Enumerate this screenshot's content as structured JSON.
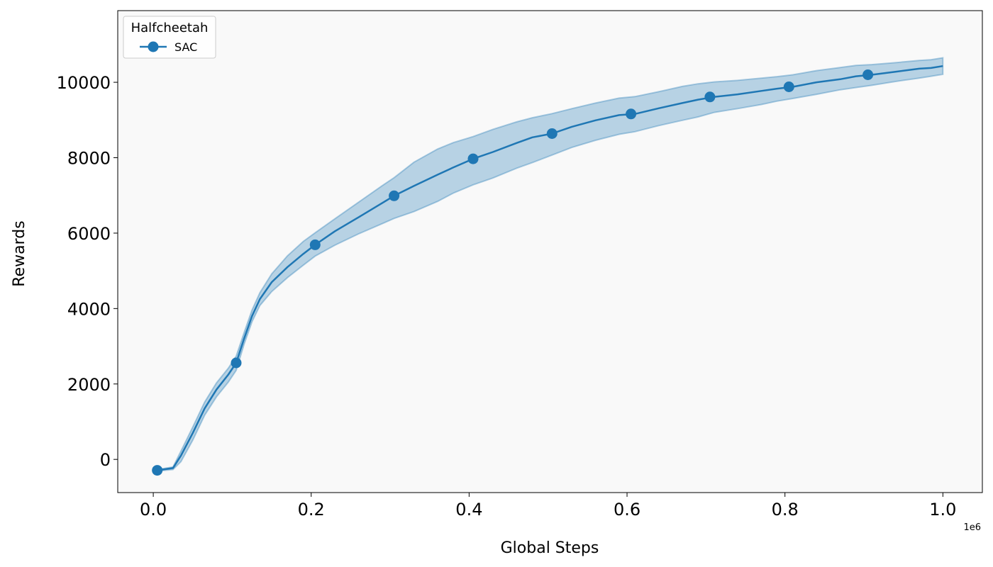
{
  "chart_data": {
    "type": "line",
    "xlabel": "Global Steps",
    "ylabel": "Rewards",
    "x_offset_label": "1e6",
    "xlim": [
      -0.045,
      1.05
    ],
    "ylim": [
      -880,
      11900
    ],
    "x_ticks": [
      0.0,
      0.2,
      0.4,
      0.6,
      0.8,
      1.0
    ],
    "x_tick_labels": [
      "0.0",
      "0.2",
      "0.4",
      "0.6",
      "0.8",
      "1.0"
    ],
    "y_ticks": [
      0,
      2000,
      4000,
      6000,
      8000,
      10000
    ],
    "y_tick_labels": [
      "0",
      "2000",
      "4000",
      "6000",
      "8000",
      "10000"
    ],
    "grid": false,
    "legend": {
      "title": "Halfcheetah",
      "placement": "top-left",
      "entries": [
        "SAC"
      ]
    },
    "colors": {
      "series": "#1f77b4",
      "band_fill": "#1f77b4",
      "plot_background": "#f9f9f9"
    },
    "series": [
      {
        "name": "SAC",
        "x": [
          0.005,
          0.025,
          0.035,
          0.05,
          0.065,
          0.08,
          0.095,
          0.105,
          0.115,
          0.125,
          0.135,
          0.15,
          0.17,
          0.19,
          0.205,
          0.23,
          0.26,
          0.29,
          0.305,
          0.33,
          0.36,
          0.38,
          0.405,
          0.43,
          0.46,
          0.48,
          0.505,
          0.53,
          0.56,
          0.59,
          0.61,
          0.64,
          0.67,
          0.69,
          0.71,
          0.74,
          0.77,
          0.79,
          0.81,
          0.84,
          0.87,
          0.89,
          0.91,
          0.94,
          0.97,
          0.985,
          1.0
        ],
        "y": [
          -290,
          -230,
          100,
          700,
          1350,
          1850,
          2250,
          2560,
          3200,
          3800,
          4250,
          4700,
          5100,
          5450,
          5690,
          6050,
          6420,
          6800,
          6990,
          7250,
          7550,
          7740,
          7970,
          8150,
          8390,
          8540,
          8640,
          8820,
          8990,
          9130,
          9160,
          9310,
          9450,
          9540,
          9610,
          9680,
          9770,
          9830,
          9880,
          10000,
          10080,
          10160,
          10200,
          10280,
          10360,
          10380,
          10430
        ],
        "y_lower": [
          -310,
          -270,
          -60,
          510,
          1170,
          1660,
          2050,
          2360,
          3050,
          3650,
          4080,
          4450,
          4820,
          5150,
          5390,
          5680,
          5980,
          6250,
          6390,
          6570,
          6840,
          7060,
          7280,
          7460,
          7720,
          7870,
          8070,
          8270,
          8460,
          8620,
          8690,
          8850,
          8990,
          9080,
          9200,
          9300,
          9410,
          9500,
          9570,
          9680,
          9800,
          9860,
          9920,
          10020,
          10110,
          10160,
          10210
        ],
        "y_upper": [
          -270,
          -200,
          220,
          860,
          1520,
          2030,
          2420,
          2740,
          3360,
          3960,
          4420,
          4920,
          5400,
          5780,
          6010,
          6380,
          6820,
          7260,
          7470,
          7880,
          8230,
          8400,
          8560,
          8750,
          8950,
          9060,
          9170,
          9300,
          9450,
          9580,
          9620,
          9750,
          9890,
          9960,
          10010,
          10050,
          10110,
          10150,
          10200,
          10310,
          10390,
          10450,
          10470,
          10520,
          10580,
          10600,
          10650
        ],
        "markers": [
          [
            0.005,
            -290
          ],
          [
            0.105,
            2560
          ],
          [
            0.205,
            5690
          ],
          [
            0.305,
            6990
          ],
          [
            0.405,
            7970
          ],
          [
            0.505,
            8640
          ],
          [
            0.605,
            9160
          ],
          [
            0.705,
            9610
          ],
          [
            0.805,
            9880
          ],
          [
            0.905,
            10200
          ]
        ]
      }
    ]
  }
}
